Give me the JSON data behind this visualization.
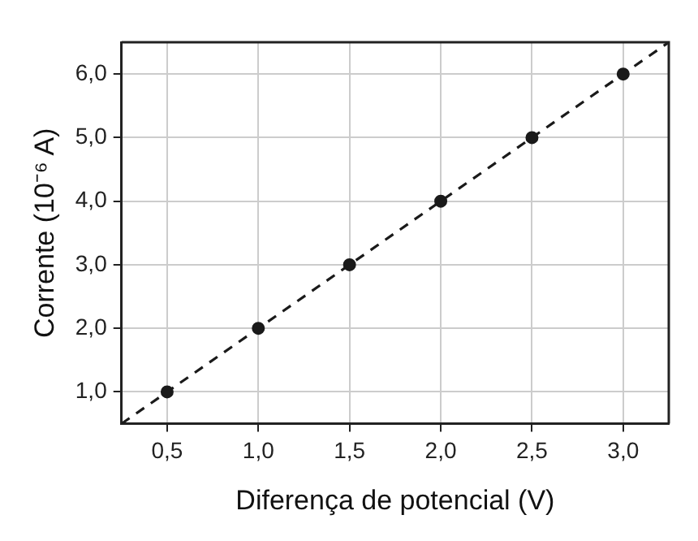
{
  "chart_data": {
    "type": "scatter",
    "xlabel": "Diferença de potencial (V)",
    "ylabel": "Corrente (10⁻⁶ A)",
    "x": [
      0.5,
      1.0,
      1.5,
      2.0,
      2.5,
      3.0
    ],
    "series": [
      {
        "color": "#1a1a1a",
        "values": [
          1.0,
          2.0,
          3.0,
          4.0,
          5.0,
          6.0
        ],
        "marker": "circle"
      },
      {
        "type": "line",
        "x": [
          0.25,
          3.25
        ],
        "values": [
          0.5,
          6.5
        ],
        "color": "#1a1a1a",
        "line_style": "dashed",
        "marker": "none"
      }
    ],
    "xlim": [
      0.25,
      3.25
    ],
    "ylim": [
      0.5,
      6.5
    ],
    "xticks": [
      {
        "value": 0.5,
        "label": "0,5"
      },
      {
        "value": 1.0,
        "label": "1,0"
      },
      {
        "value": 1.5,
        "label": "1,5"
      },
      {
        "value": 2.0,
        "label": "2,0"
      },
      {
        "value": 2.5,
        "label": "2,5"
      },
      {
        "value": 3.0,
        "label": "3,0"
      }
    ],
    "yticks": [
      {
        "value": 1.0,
        "label": "1,0"
      },
      {
        "value": 2.0,
        "label": "2,0"
      },
      {
        "value": 3.0,
        "label": "3,0"
      },
      {
        "value": 4.0,
        "label": "4,0"
      },
      {
        "value": 5.0,
        "label": "5,0"
      },
      {
        "value": 6.0,
        "label": "6,0"
      }
    ],
    "grid": true,
    "legend": false
  }
}
